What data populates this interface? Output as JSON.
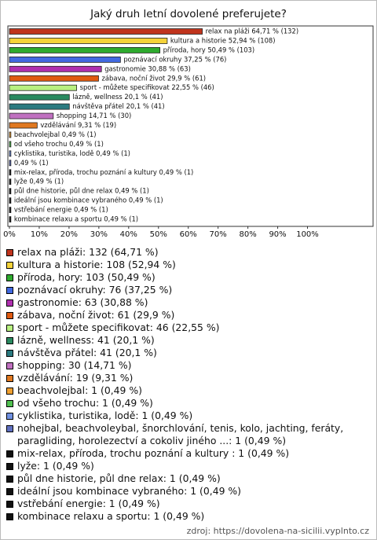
{
  "chart_data": {
    "type": "bar",
    "orientation": "horizontal",
    "title": "Jaký druh letní dovolené preferujete?",
    "values": [
      64.71,
      52.94,
      50.49,
      37.25,
      30.88,
      29.9,
      22.55,
      20.1,
      20.1,
      14.71,
      9.31,
      0.49,
      0.49,
      0.49,
      0.49,
      0.49,
      0.49,
      0.49,
      0.49,
      0.49,
      0.49
    ],
    "value_labels": [
      "relax na pláži 64,71 % (132)",
      "kultura a historie 52,94 % (108)",
      "příroda, hory 50,49 % (103)",
      "poznávací okruhy 37,25 % (76)",
      "gastronomie 30,88 % (63)",
      "zábava, noční život 29,9 % (61)",
      "sport - můžete specifikovat 22,55 % (46)",
      "lázně, wellness 20,1 % (41)",
      "návštěva přátel 20,1 % (41)",
      "shopping 14,71 % (30)",
      "vzdělávání 9,31 % (19)",
      "beachvolejbal 0,49 % (1)",
      "od všeho trochu 0,49 % (1)",
      "cyklistika, turistika, lodě 0,49 % (1)",
      "0,49 % (1)",
      "mix-relax, příroda, trochu poznání a kultury  0,49 % (1)",
      "lyže 0,49 % (1)",
      "půl dne historie, půl dne relax 0,49 % (1)",
      "ideální jsou kombinace vybraného 0,49 % (1)",
      "vstřebání energie 0,49 % (1)",
      "kombinace relaxu a sportu 0,49 % (1)"
    ],
    "colors": [
      "#c0341d",
      "#f5d33a",
      "#2eaa2e",
      "#4169e1",
      "#b030b0",
      "#e05a10",
      "#b8f080",
      "#2a8a60",
      "#2a7a80",
      "#c070c0",
      "#e07820",
      "#f0a030",
      "#50c050",
      "#7090e0",
      "#6070c0",
      "#111111",
      "#111111",
      "#111111",
      "#111111",
      "#111111",
      "#111111"
    ],
    "legend": [
      "relax na pláži: 132 (64,71 %)",
      "kultura a historie: 108 (52,94 %)",
      "příroda, hory: 103 (50,49 %)",
      "poznávací okruhy: 76 (37,25 %)",
      "gastronomie: 63 (30,88 %)",
      "zábava, noční život: 61 (29,9 %)",
      "sport - můžete specifikovat: 46 (22,55 %)",
      "lázně, wellness: 41 (20,1 %)",
      "návštěva přátel: 41 (20,1 %)",
      "shopping: 30 (14,71 %)",
      "vzdělávání: 19 (9,31 %)",
      "beachvolejbal: 1 (0,49 %)",
      "od všeho trochu: 1 (0,49 %)",
      "cyklistika, turistika, lodě: 1 (0,49 %)",
      "nohejbal, beachvoleybal, šnorchlování, tenis, kolo, jachting, feráty, paragliding, horolezectví a cokoliv jiného ...: 1 (0,49 %)",
      "mix-relax, příroda, trochu poznání a kultury : 1 (0,49 %)",
      "lyže: 1 (0,49 %)",
      "půl dne historie, půl dne relax: 1 (0,49 %)",
      "ideální jsou kombinace vybraného: 1 (0,49 %)",
      "vstřebání energie: 1 (0,49 %)",
      "kombinace relaxu a sportu: 1 (0,49 %)"
    ],
    "xlim": [
      0,
      122
    ],
    "xticks": [
      {
        "value": 0,
        "label": "0%"
      },
      {
        "value": 10,
        "label": "10%"
      },
      {
        "value": 20,
        "label": "20%"
      },
      {
        "value": 30,
        "label": "30%"
      },
      {
        "value": 40,
        "label": "40%"
      },
      {
        "value": 50,
        "label": "50%"
      },
      {
        "value": 60,
        "label": "60%"
      },
      {
        "value": 70,
        "label": "70%"
      },
      {
        "value": 80,
        "label": "80%"
      },
      {
        "value": 90,
        "label": "90%"
      },
      {
        "value": 100,
        "label": "100%"
      }
    ],
    "grid": false
  },
  "source": "zdroj: https://dovolena-na-sicilii.vyplnto.cz"
}
